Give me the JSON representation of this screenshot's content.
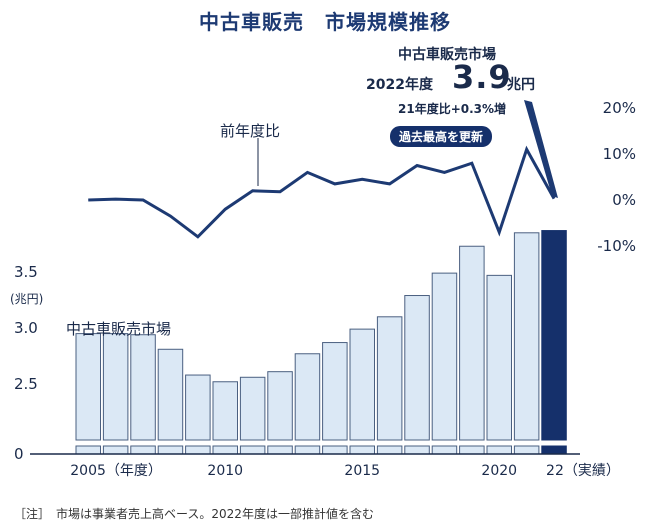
{
  "title": "中古車販売　市場規模推移",
  "note": "［注］　市場は事業者売上高ベース。2022年度は一部推計値を含む",
  "callout": {
    "market": "中古車販売市場",
    "year_label": "2022年度",
    "value": "3.9",
    "unit": "兆円",
    "yoy": "21年度比+0.3%増",
    "badge": "過去最高を更新"
  },
  "line_label": "前年度比",
  "bar_label": "中古車販売市場",
  "colors": {
    "bar_fill": "#dbe8f5",
    "bar_stroke": "#4a5f80",
    "highlight": "#15306b",
    "line": "#1d3a73",
    "text": "#1a2a4a"
  },
  "chart_data": {
    "type": "bar",
    "categories": [
      "2005",
      "2006",
      "2007",
      "2008",
      "2009",
      "2010",
      "2011",
      "2012",
      "2013",
      "2014",
      "2015",
      "2016",
      "2017",
      "2018",
      "2019",
      "2020",
      "2021",
      "2022"
    ],
    "series": [
      {
        "name": "中古車販売市場",
        "unit": "兆円",
        "axis": "left",
        "values": [
          2.95,
          2.95,
          2.94,
          2.81,
          2.58,
          2.52,
          2.56,
          2.61,
          2.77,
          2.87,
          2.99,
          3.1,
          3.29,
          3.49,
          3.73,
          3.47,
          3.85,
          3.87
        ]
      },
      {
        "name": "前年度比",
        "unit": "%",
        "axis": "right",
        "values": [
          0.0,
          0.2,
          0.0,
          -3.5,
          -8.0,
          -2.0,
          2.0,
          1.8,
          6.0,
          3.5,
          4.5,
          3.5,
          7.5,
          6.0,
          8.0,
          -7.0,
          11.0,
          0.3
        ]
      }
    ],
    "left_axis": {
      "ticks": [
        "0",
        "2.5",
        "3.0",
        "3.5"
      ],
      "unit_label": "(兆円)",
      "range": [
        2.0,
        4.0
      ],
      "axis_break": true
    },
    "right_axis": {
      "ticks": [
        "20%",
        "10%",
        "0%",
        "-10%"
      ],
      "range": [
        -10,
        20
      ]
    },
    "x_ticks": [
      {
        "category": "2005",
        "label": "2005（年度）"
      },
      {
        "category": "2010",
        "label": "2010"
      },
      {
        "category": "2015",
        "label": "2015"
      },
      {
        "category": "2020",
        "label": "2020"
      },
      {
        "category": "2022",
        "label": "22（実績）"
      }
    ],
    "highlight_category": "2022",
    "grid": false
  }
}
